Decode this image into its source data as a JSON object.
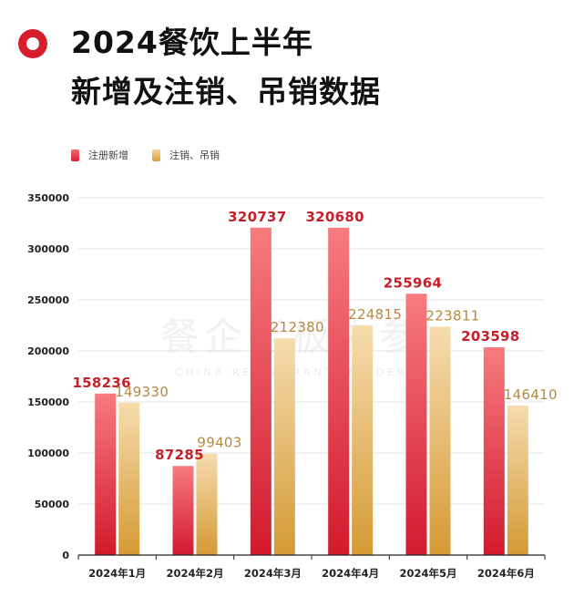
{
  "title": {
    "line1": "2024餐饮上半年",
    "line2": "新增及注销、吊销数据"
  },
  "icons": {
    "title_mark": "circle-mark-icon"
  },
  "watermark": {
    "main": "餐企老板内参",
    "sub": "CHINA RESTAURANT INSIDER"
  },
  "colors": {
    "accent": "#d71d2b",
    "series1": "#e8283a",
    "series2": "#e3b659",
    "label1": "#c3202c",
    "label2": "#b68a3f"
  },
  "chart_data": {
    "type": "bar",
    "categories": [
      "2024年1月",
      "2024年2月",
      "2024年3月",
      "2024年4月",
      "2024年5月",
      "2024年6月"
    ],
    "series": [
      {
        "name": "注册新增",
        "values": [
          158236,
          87285,
          320737,
          320680,
          255964,
          203598
        ]
      },
      {
        "name": "注销、吊销",
        "values": [
          149330,
          99403,
          212380,
          224815,
          223811,
          146410
        ]
      }
    ],
    "yticks": [
      0,
      50000,
      100000,
      150000,
      200000,
      250000,
      300000,
      350000
    ],
    "ylim": [
      0,
      350000
    ],
    "grid": true,
    "legend": "top-left",
    "title": "",
    "xlabel": "",
    "ylabel": ""
  }
}
